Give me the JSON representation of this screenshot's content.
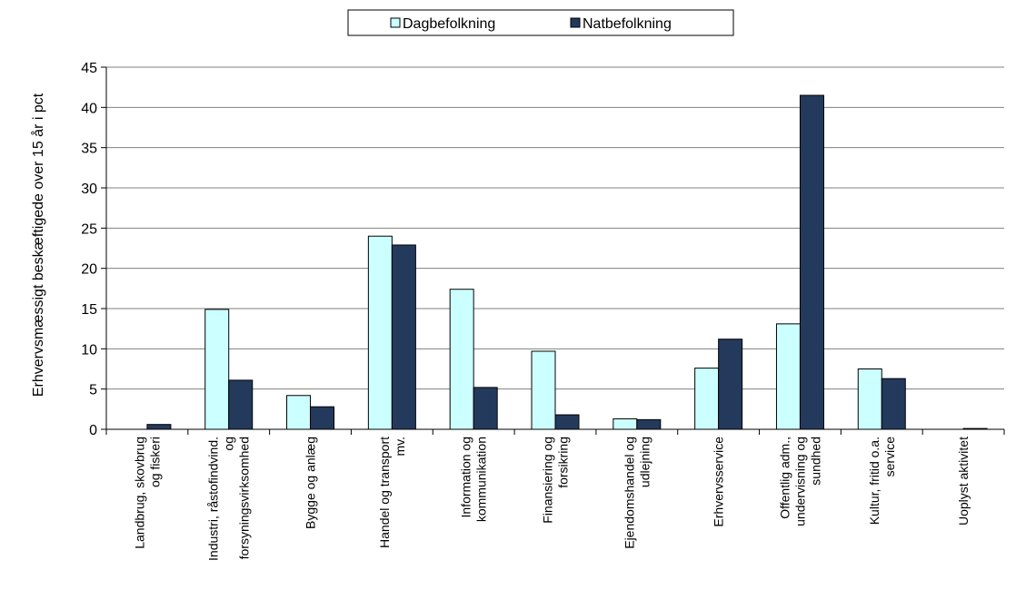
{
  "chart_data": {
    "type": "bar",
    "title": "",
    "xlabel": "",
    "ylabel": "Erhvervsmæssigt beskæftigede over 15 år i pct",
    "ylim": [
      0,
      45
    ],
    "yticks": [
      0,
      5,
      10,
      15,
      20,
      25,
      30,
      35,
      40,
      45
    ],
    "grid": true,
    "legend_position": "top-center",
    "categories": [
      [
        "Landbrug, skovbrug",
        "og fiskeri"
      ],
      [
        "Industri, råstofindvind.",
        "og",
        "forsyningsvirksomhed"
      ],
      [
        "Bygge og anlæg"
      ],
      [
        "Handel og transport",
        "mv."
      ],
      [
        "Information og",
        "kommunikation"
      ],
      [
        "Finansiering og",
        "forsikring"
      ],
      [
        "Ejendomshandel og",
        "udlejning"
      ],
      [
        "Erhvervsservice"
      ],
      [
        "Offentlig adm.,",
        "undervisning og",
        "sundhed"
      ],
      [
        "Kultur, fritid o.a.",
        "service"
      ],
      [
        "Uoplyst aktivitet"
      ]
    ],
    "series": [
      {
        "name": "Dagbefolkning",
        "color": "#ccffff",
        "values": [
          0,
          14.9,
          4.2,
          24.0,
          17.4,
          9.7,
          1.3,
          7.6,
          13.1,
          7.5,
          0
        ]
      },
      {
        "name": "Natbefolkning",
        "color": "#243a5c",
        "values": [
          0.6,
          6.1,
          2.8,
          22.9,
          5.2,
          1.8,
          1.2,
          11.2,
          41.5,
          6.3,
          0.1
        ]
      }
    ]
  }
}
